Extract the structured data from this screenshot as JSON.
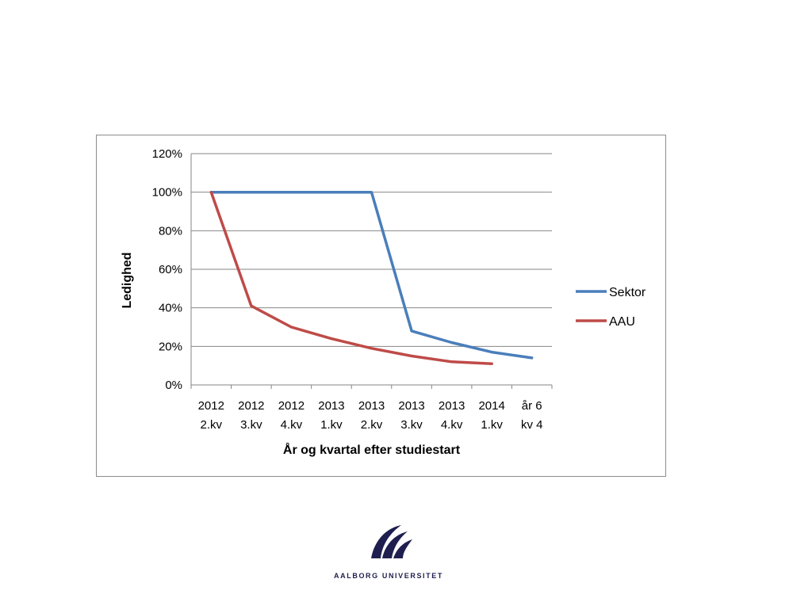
{
  "chart_data": {
    "type": "line",
    "title": "",
    "xlabel": "År og kvartal efter studiestart",
    "ylabel": "Ledighed",
    "ylim": [
      0,
      1.2
    ],
    "yticks": [
      {
        "value": 0,
        "label": "0%"
      },
      {
        "value": 0.2,
        "label": "20%"
      },
      {
        "value": 0.4,
        "label": "40%"
      },
      {
        "value": 0.6,
        "label": "60%"
      },
      {
        "value": 0.8,
        "label": "80%"
      },
      {
        "value": 1.0,
        "label": "100%"
      },
      {
        "value": 1.2,
        "label": "120%"
      }
    ],
    "categories": [
      {
        "line1": "2012",
        "line2": "2.kv"
      },
      {
        "line1": "2012",
        "line2": "3.kv"
      },
      {
        "line1": "2012",
        "line2": "4.kv"
      },
      {
        "line1": "2013",
        "line2": "1.kv"
      },
      {
        "line1": "2013",
        "line2": "2.kv"
      },
      {
        "line1": "2013",
        "line2": "3.kv"
      },
      {
        "line1": "2013",
        "line2": "4.kv"
      },
      {
        "line1": "2014",
        "line2": "1.kv"
      },
      {
        "line1": "år 6",
        "line2": "kv 4"
      }
    ],
    "series": [
      {
        "name": "Sektor",
        "color": "#4a7ebb",
        "values": [
          1.0,
          1.0,
          1.0,
          1.0,
          1.0,
          0.28,
          0.22,
          0.17,
          0.14
        ]
      },
      {
        "name": "AAU",
        "color": "#be4b48",
        "values": [
          1.0,
          0.41,
          0.3,
          0.24,
          0.19,
          0.15,
          0.12,
          0.11,
          null
        ]
      }
    ],
    "grid": true,
    "legend_position": "right"
  },
  "logo": {
    "text": "AALBORG UNIVERSITET",
    "color": "#1f1f4f"
  }
}
